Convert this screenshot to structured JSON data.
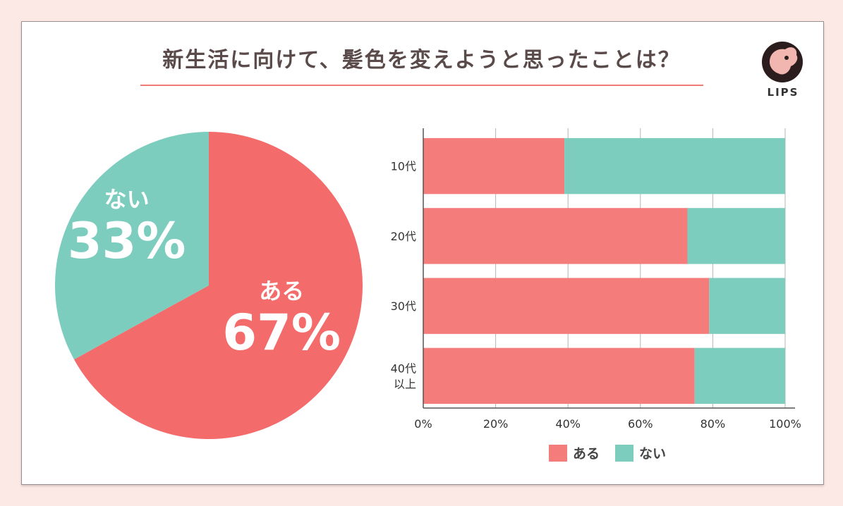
{
  "title": "新生活に向けて、髪色を変えようと思ったことは？",
  "brand": "LIPS",
  "colors": {
    "yes": "#f46b6b",
    "no": "#7dcdbf",
    "bar_yes": "#f47c7a",
    "bar_no": "#7dcdbf",
    "title_rule": "#f07a74"
  },
  "chart_data": [
    {
      "type": "pie",
      "slices": [
        {
          "label": "ある",
          "percent_label": "67%",
          "value": 67
        },
        {
          "label": "ない",
          "percent_label": "33%",
          "value": 33
        }
      ]
    },
    {
      "type": "bar",
      "orientation": "horizontal",
      "stacked": true,
      "categories": [
        [
          "10代"
        ],
        [
          "20代"
        ],
        [
          "30代"
        ],
        [
          "40代",
          "以上"
        ]
      ],
      "series": [
        {
          "name": "ある",
          "values": [
            39,
            73,
            79,
            75
          ]
        },
        {
          "name": "ない",
          "values": [
            61,
            27,
            21,
            25
          ]
        }
      ],
      "xlim": [
        0,
        100
      ],
      "xticks": [
        "0%",
        "20%",
        "40%",
        "60%",
        "80%",
        "100%"
      ],
      "grid": true,
      "legend": [
        "ある",
        "ない"
      ],
      "legend_position": "bottom"
    }
  ]
}
